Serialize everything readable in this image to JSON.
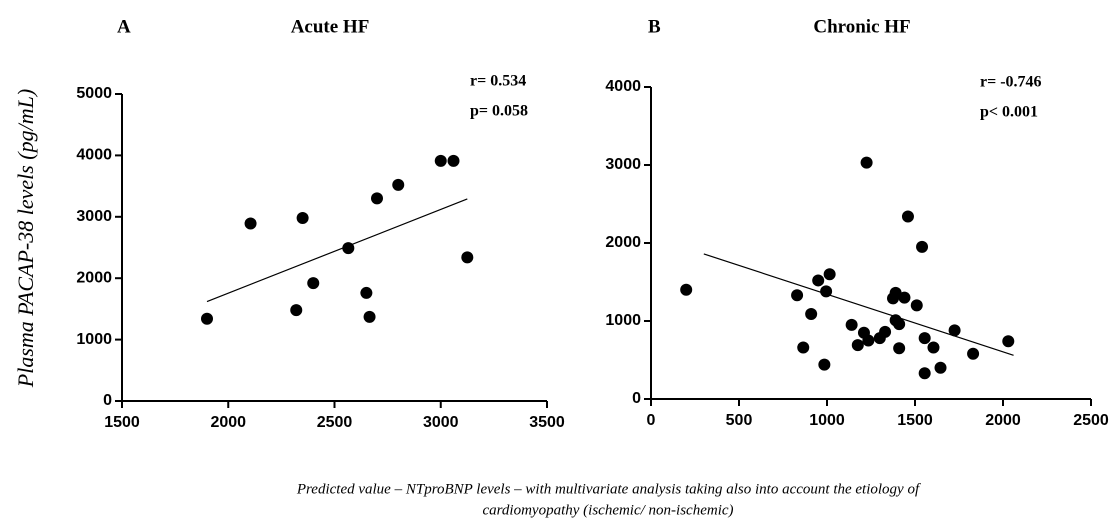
{
  "y_label": "Plasma PACAP-38 levels (pg/mL)",
  "caption": [
    "Predicted value – NTproBNP levels – with multivariate analysis taking also into account the etiology of",
    "cardiomyopathy (ischemic/ non-ischemic)"
  ],
  "chart_data": [
    {
      "type": "scatter",
      "letter": "A",
      "title": "Acute HF",
      "color": "#000000",
      "annotations": [
        "r= 0.534",
        "p= 0.058"
      ],
      "x": [
        1900,
        2105,
        2320,
        2350,
        2400,
        2565,
        2650,
        2665,
        2700,
        2800,
        3000,
        3060,
        3125
      ],
      "values": [
        1340,
        2890,
        1480,
        2980,
        1920,
        2490,
        1760,
        1370,
        3300,
        3520,
        3910,
        3910,
        2340
      ],
      "trendline": {
        "x": [
          1900,
          3125
        ],
        "y": [
          1620,
          3290
        ]
      },
      "xlim": [
        1500,
        3500
      ],
      "xticks": [
        1500,
        2000,
        2500,
        3000,
        3500
      ],
      "ylim": [
        0,
        5000
      ],
      "yticks": [
        0,
        1000,
        2000,
        3000,
        4000,
        5000
      ]
    },
    {
      "type": "scatter",
      "letter": "B",
      "title": "Chronic HF",
      "color": "#000000",
      "annotations": [
        "r= -0.746",
        "p<  0.001"
      ],
      "x": [
        200,
        830,
        865,
        910,
        950,
        985,
        995,
        1015,
        1140,
        1175,
        1210,
        1225,
        1235,
        1300,
        1330,
        1375,
        1390,
        1390,
        1410,
        1410,
        1440,
        1460,
        1510,
        1540,
        1555,
        1555,
        1605,
        1645,
        1725,
        1830,
        2030
      ],
      "values": [
        1400,
        1330,
        660,
        1090,
        1520,
        440,
        1380,
        1600,
        950,
        690,
        850,
        3030,
        750,
        780,
        860,
        1290,
        1360,
        1010,
        960,
        650,
        1300,
        2340,
        1200,
        1950,
        780,
        330,
        660,
        400,
        880,
        580,
        740
      ],
      "trendline": {
        "x": [
          300,
          2060
        ],
        "y": [
          1860,
          560
        ]
      },
      "xlim": [
        0,
        2500
      ],
      "xticks": [
        0,
        500,
        1000,
        1500,
        2000,
        2500
      ],
      "ylim": [
        0,
        4000
      ],
      "yticks": [
        0,
        1000,
        2000,
        3000,
        4000
      ]
    }
  ]
}
